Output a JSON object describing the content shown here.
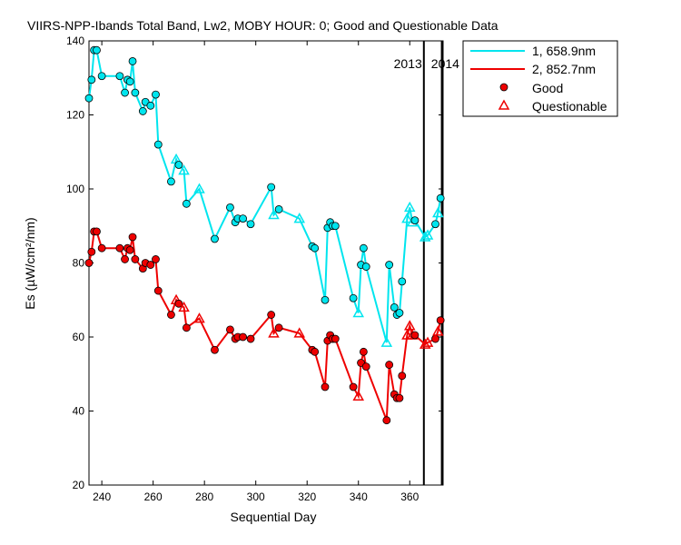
{
  "chart_data": {
    "type": "line",
    "title": "VIIRS-NPP-Ibands Total Band,  Lw2, MOBY HOUR: 0;  Good and Questionable Data",
    "xlabel": "Sequential Day",
    "ylabel": "Es (µW/cm²/nm)",
    "xlim": [
      235,
      373
    ],
    "ylim": [
      20,
      140
    ],
    "x_ticks": [
      240,
      260,
      280,
      300,
      320,
      340,
      360
    ],
    "y_ticks": [
      20,
      40,
      60,
      80,
      100,
      120,
      140
    ],
    "grid": false,
    "legend_position": "top-right",
    "year_markers": [
      {
        "x": 365.5,
        "label_left": "2013",
        "label_right": "2014"
      },
      {
        "x": 372.5
      }
    ],
    "marker_legend": {
      "good": "Good",
      "questionable": "Questionable"
    },
    "series": [
      {
        "name": "1, 658.9nm",
        "color": "#00e5ee",
        "points": [
          {
            "x": 235,
            "y": 124.5,
            "q": 0
          },
          {
            "x": 236,
            "y": 129.5,
            "q": 0
          },
          {
            "x": 237,
            "y": 137.5,
            "q": 0
          },
          {
            "x": 238,
            "y": 137.5,
            "q": 0
          },
          {
            "x": 240,
            "y": 130.5,
            "q": 0
          },
          {
            "x": 247,
            "y": 130.5,
            "q": 0
          },
          {
            "x": 249,
            "y": 126,
            "q": 0
          },
          {
            "x": 250,
            "y": 129.5,
            "q": 0
          },
          {
            "x": 251,
            "y": 129,
            "q": 0
          },
          {
            "x": 252,
            "y": 134.5,
            "q": 0
          },
          {
            "x": 253,
            "y": 126,
            "q": 0
          },
          {
            "x": 256,
            "y": 121,
            "q": 0
          },
          {
            "x": 257,
            "y": 123.5,
            "q": 0
          },
          {
            "x": 259,
            "y": 122.5,
            "q": 0
          },
          {
            "x": 261,
            "y": 125.5,
            "q": 0
          },
          {
            "x": 262,
            "y": 112,
            "q": 0
          },
          {
            "x": 267,
            "y": 102,
            "q": 0
          },
          {
            "x": 269,
            "y": 108,
            "q": 1
          },
          {
            "x": 270,
            "y": 106.5,
            "q": 0
          },
          {
            "x": 272,
            "y": 105,
            "q": 1
          },
          {
            "x": 273,
            "y": 96,
            "q": 0
          },
          {
            "x": 278,
            "y": 100,
            "q": 1
          },
          {
            "x": 284,
            "y": 86.5,
            "q": 0
          },
          {
            "x": 290,
            "y": 95,
            "q": 0
          },
          {
            "x": 292,
            "y": 91,
            "q": 0
          },
          {
            "x": 293,
            "y": 92,
            "q": 0
          },
          {
            "x": 295,
            "y": 92,
            "q": 0
          },
          {
            "x": 298,
            "y": 90.5,
            "q": 0
          },
          {
            "x": 306,
            "y": 100.5,
            "q": 0
          },
          {
            "x": 307,
            "y": 93,
            "q": 1
          },
          {
            "x": 309,
            "y": 94.5,
            "q": 0
          },
          {
            "x": 317,
            "y": 92,
            "q": 1
          },
          {
            "x": 322,
            "y": 84.5,
            "q": 0
          },
          {
            "x": 323,
            "y": 84,
            "q": 0
          },
          {
            "x": 327,
            "y": 70,
            "q": 0
          },
          {
            "x": 328,
            "y": 89.5,
            "q": 0
          },
          {
            "x": 329,
            "y": 91,
            "q": 0
          },
          {
            "x": 330,
            "y": 90,
            "q": 0
          },
          {
            "x": 331,
            "y": 90,
            "q": 0
          },
          {
            "x": 338,
            "y": 70.5,
            "q": 0
          },
          {
            "x": 340,
            "y": 66.5,
            "q": 1
          },
          {
            "x": 341,
            "y": 79.5,
            "q": 0
          },
          {
            "x": 342,
            "y": 84,
            "q": 0
          },
          {
            "x": 343,
            "y": 79,
            "q": 0
          },
          {
            "x": 351,
            "y": 58.5,
            "q": 1
          },
          {
            "x": 352,
            "y": 79.5,
            "q": 0
          },
          {
            "x": 354,
            "y": 68,
            "q": 0
          },
          {
            "x": 355,
            "y": 66,
            "q": 0
          },
          {
            "x": 356,
            "y": 66.5,
            "q": 0
          },
          {
            "x": 357,
            "y": 75,
            "q": 0
          },
          {
            "x": 359,
            "y": 92,
            "q": 1
          },
          {
            "x": 360,
            "y": 95,
            "q": 1
          },
          {
            "x": 361,
            "y": 91,
            "q": 1
          },
          {
            "x": 362,
            "y": 91.5,
            "q": 0
          },
          {
            "x": 366,
            "y": 87,
            "q": 1
          },
          {
            "x": 367,
            "y": 87.5,
            "q": 1
          },
          {
            "x": 370,
            "y": 90.5,
            "q": 0
          },
          {
            "x": 371,
            "y": 93.5,
            "q": 1
          },
          {
            "x": 372,
            "y": 97.5,
            "q": 0
          }
        ]
      },
      {
        "name": "2, 852.7nm",
        "color": "#ee0000",
        "points": [
          {
            "x": 235,
            "y": 80,
            "q": 0
          },
          {
            "x": 236,
            "y": 83,
            "q": 0
          },
          {
            "x": 237,
            "y": 88.5,
            "q": 0
          },
          {
            "x": 238,
            "y": 88.5,
            "q": 0
          },
          {
            "x": 240,
            "y": 84,
            "q": 0
          },
          {
            "x": 247,
            "y": 84,
            "q": 0
          },
          {
            "x": 249,
            "y": 81,
            "q": 0
          },
          {
            "x": 250,
            "y": 84,
            "q": 0
          },
          {
            "x": 251,
            "y": 83.5,
            "q": 0
          },
          {
            "x": 252,
            "y": 87,
            "q": 0
          },
          {
            "x": 253,
            "y": 81,
            "q": 0
          },
          {
            "x": 256,
            "y": 78.5,
            "q": 0
          },
          {
            "x": 257,
            "y": 80,
            "q": 0
          },
          {
            "x": 259,
            "y": 79.5,
            "q": 0
          },
          {
            "x": 261,
            "y": 81,
            "q": 0
          },
          {
            "x": 262,
            "y": 72.5,
            "q": 0
          },
          {
            "x": 267,
            "y": 66,
            "q": 0
          },
          {
            "x": 269,
            "y": 70,
            "q": 1
          },
          {
            "x": 270,
            "y": 69,
            "q": 0
          },
          {
            "x": 272,
            "y": 68,
            "q": 1
          },
          {
            "x": 273,
            "y": 62.5,
            "q": 0
          },
          {
            "x": 278,
            "y": 65,
            "q": 1
          },
          {
            "x": 284,
            "y": 56.5,
            "q": 0
          },
          {
            "x": 290,
            "y": 62,
            "q": 0
          },
          {
            "x": 292,
            "y": 59.5,
            "q": 0
          },
          {
            "x": 293,
            "y": 60,
            "q": 0
          },
          {
            "x": 295,
            "y": 60,
            "q": 0
          },
          {
            "x": 298,
            "y": 59.5,
            "q": 0
          },
          {
            "x": 306,
            "y": 66,
            "q": 0
          },
          {
            "x": 307,
            "y": 61,
            "q": 1
          },
          {
            "x": 309,
            "y": 62.5,
            "q": 0
          },
          {
            "x": 317,
            "y": 61,
            "q": 1
          },
          {
            "x": 322,
            "y": 56.5,
            "q": 0
          },
          {
            "x": 323,
            "y": 56,
            "q": 0
          },
          {
            "x": 327,
            "y": 46.5,
            "q": 0
          },
          {
            "x": 328,
            "y": 59,
            "q": 0
          },
          {
            "x": 329,
            "y": 60.5,
            "q": 0
          },
          {
            "x": 330,
            "y": 59.5,
            "q": 0
          },
          {
            "x": 331,
            "y": 59.5,
            "q": 0
          },
          {
            "x": 338,
            "y": 46.5,
            "q": 0
          },
          {
            "x": 340,
            "y": 44,
            "q": 1
          },
          {
            "x": 341,
            "y": 53,
            "q": 0
          },
          {
            "x": 342,
            "y": 56,
            "q": 0
          },
          {
            "x": 343,
            "y": 52,
            "q": 0
          },
          {
            "x": 351,
            "y": 37.5,
            "q": 0
          },
          {
            "x": 352,
            "y": 52.5,
            "q": 0
          },
          {
            "x": 354,
            "y": 44.5,
            "q": 0
          },
          {
            "x": 355,
            "y": 43.5,
            "q": 0
          },
          {
            "x": 356,
            "y": 43.5,
            "q": 0
          },
          {
            "x": 357,
            "y": 49.5,
            "q": 0
          },
          {
            "x": 359,
            "y": 60.5,
            "q": 1
          },
          {
            "x": 360,
            "y": 63,
            "q": 1
          },
          {
            "x": 361,
            "y": 60.5,
            "q": 1
          },
          {
            "x": 362,
            "y": 60.5,
            "q": 0
          },
          {
            "x": 366,
            "y": 58,
            "q": 1
          },
          {
            "x": 367,
            "y": 58.5,
            "q": 1
          },
          {
            "x": 370,
            "y": 59.5,
            "q": 0
          },
          {
            "x": 371,
            "y": 61.5,
            "q": 1
          },
          {
            "x": 372,
            "y": 64.5,
            "q": 0
          }
        ]
      }
    ]
  }
}
